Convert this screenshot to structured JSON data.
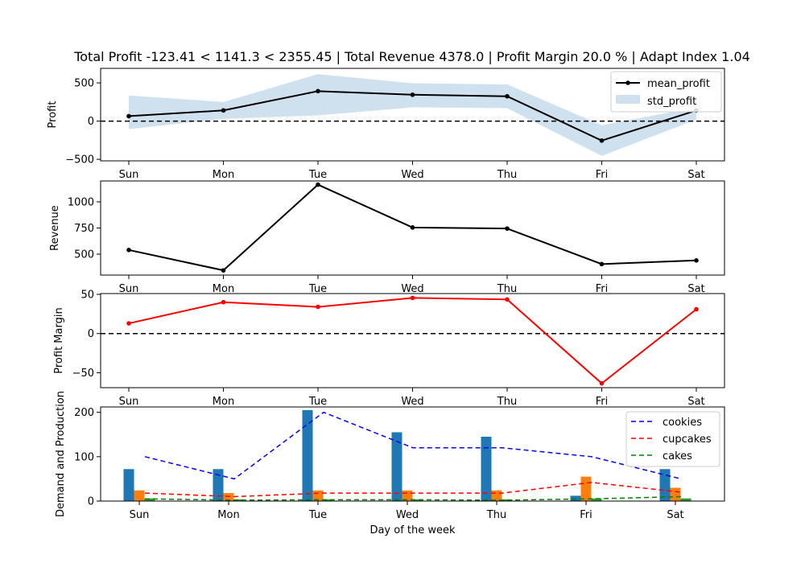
{
  "title": "Total Profit -123.41 < 1141.3 < 2355.45 | Total Revenue 4378.0 | Profit Margin 20.0 % | Adapt Index 1.04",
  "colors": {
    "black": "#000000",
    "band": "#cfe1ef",
    "red": "#ff0000",
    "bar_cookies": "#1f77b4",
    "bar_cupcakes": "#ff7f0e",
    "bar_cakes": "#2ca02c",
    "line_cookies": "#0000ff",
    "line_cupcakes": "#ff0000",
    "line_cakes": "#008000"
  },
  "chart_data": [
    {
      "type": "line",
      "x": [
        "Sun",
        "Mon",
        "Tue",
        "Wed",
        "Thu",
        "Fri",
        "Sat"
      ],
      "ylabel": "Profit",
      "ylim": [
        -520,
        690
      ],
      "yticks": [
        -500,
        0,
        500
      ],
      "hline": 0,
      "series": [
        {
          "name": "mean_profit",
          "values": [
            65,
            140,
            392,
            345,
            325,
            -255,
            140
          ]
        },
        {
          "name": "std_profit",
          "lower": [
            -105,
            30,
            75,
            180,
            170,
            -455,
            20
          ],
          "upper": [
            335,
            250,
            615,
            495,
            480,
            -55,
            180
          ]
        }
      ],
      "legend": "upper right"
    },
    {
      "type": "line",
      "x": [
        "Sun",
        "Mon",
        "Tue",
        "Wed",
        "Thu",
        "Fri",
        "Sat"
      ],
      "ylabel": "Revenue",
      "ylim": [
        300,
        1200
      ],
      "yticks": [
        500,
        750,
        1000
      ],
      "series": [
        {
          "values": [
            540,
            345,
            1165,
            755,
            745,
            405,
            440
          ]
        }
      ]
    },
    {
      "type": "line",
      "x": [
        "Sun",
        "Mon",
        "Tue",
        "Wed",
        "Thu",
        "Fri",
        "Sat"
      ],
      "ylabel": "Profit Margin",
      "ylim": [
        -69,
        51
      ],
      "yticks": [
        -50,
        0,
        50
      ],
      "hline": 0,
      "series": [
        {
          "values": [
            13,
            40,
            34,
            45.5,
            43.5,
            -63.5,
            31
          ]
        }
      ]
    },
    {
      "type": "bar",
      "categories": [
        "Sun",
        "Mon",
        "Tue",
        "Wed",
        "Thu",
        "Fri",
        "Sat"
      ],
      "ylabel": "Demand and Production",
      "xlabel": "Day of the week",
      "ylim": [
        0,
        212
      ],
      "yticks": [
        0,
        100,
        200
      ],
      "bars": [
        {
          "name": "cookies",
          "values": [
            72,
            72,
            205,
            155,
            145,
            12,
            72
          ]
        },
        {
          "name": "cupcakes",
          "values": [
            24,
            18,
            24,
            24,
            24,
            55,
            30
          ]
        },
        {
          "name": "cakes",
          "values": [
            6,
            4,
            4,
            4,
            4,
            6,
            6
          ]
        }
      ],
      "series": [
        {
          "name": "cookies",
          "values": [
            100,
            50,
            200,
            120,
            120,
            100,
            50
          ]
        },
        {
          "name": "cupcakes",
          "values": [
            18,
            10,
            18,
            18,
            18,
            42,
            20
          ]
        },
        {
          "name": "cakes",
          "values": [
            5,
            2,
            3,
            3,
            2,
            5,
            10
          ]
        }
      ],
      "legend": "upper right"
    }
  ]
}
